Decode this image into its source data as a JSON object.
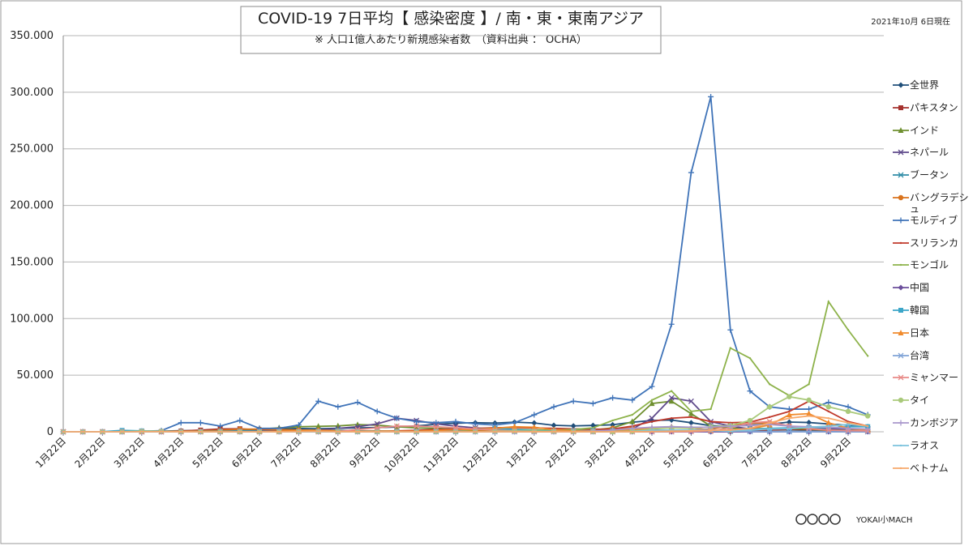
{
  "chart_data": {
    "type": "line",
    "title": "COVID-19  7日平均【 感染密度 】/ 南・東・東南アジア",
    "subtitle": "※ 人口1億人あたり新規感染者数　（資料出典 ： OCHA）",
    "date_note": "2021年10月 6日現在",
    "credit": "YOKAI小MACH",
    "categories": [
      "1月22日",
      null,
      "2月22日",
      null,
      "3月22日",
      null,
      "4月22日",
      null,
      "5月22日",
      null,
      "6月22日",
      null,
      "7月22日",
      null,
      "8月22日",
      null,
      "9月22日",
      null,
      "10月22日",
      null,
      "11月22日",
      null,
      "12月22日",
      null,
      "1月22日",
      null,
      "2月22日",
      null,
      "3月22日",
      null,
      "4月22日",
      null,
      "5月22日",
      null,
      "6月22日",
      null,
      "7月22日",
      null,
      "8月22日",
      null,
      "9月22日",
      null
    ],
    "ylim": [
      0,
      350000
    ],
    "yticks": [
      0,
      {
        "value": 50000,
        "label": "50.000"
      },
      {
        "value": 100000,
        "label": "100.000"
      },
      {
        "value": 150000,
        "label": "150.000"
      },
      {
        "value": 200000,
        "label": "200.000"
      },
      {
        "value": 250000,
        "label": "250.000"
      },
      {
        "value": 300000,
        "label": "300.000"
      },
      {
        "value": 350000,
        "label": "350.000"
      }
    ],
    "grid": true,
    "legend": "right",
    "series": [
      {
        "name": "全世界",
        "color": "#1f4e79",
        "marker": "diamond",
        "values": [
          0,
          0,
          0,
          0,
          100,
          600,
          1000,
          1100,
          1300,
          1800,
          2200,
          2600,
          2900,
          2700,
          3100,
          3500,
          3700,
          4200,
          5200,
          6600,
          7600,
          8000,
          7700,
          8500,
          7800,
          5700,
          5200,
          5600,
          6200,
          8400,
          10000,
          10400,
          8000,
          5400,
          4800,
          6000,
          6700,
          8600,
          8200,
          6900,
          5800,
          4500
        ]
      },
      {
        "name": "パキスタン",
        "color": "#a5322e",
        "marker": "square",
        "values": [
          0,
          0,
          0,
          0,
          100,
          300,
          700,
          1500,
          2500,
          2700,
          1600,
          800,
          500,
          300,
          250,
          250,
          300,
          400,
          800,
          1200,
          1500,
          1300,
          1000,
          900,
          700,
          600,
          700,
          1500,
          2200,
          2500,
          1600,
          1000,
          700,
          500,
          600,
          800,
          1500,
          2000,
          1500,
          1000,
          700,
          500
        ]
      },
      {
        "name": "インド",
        "color": "#6e8f2f",
        "marker": "triangle",
        "values": [
          0,
          0,
          0,
          0,
          0,
          50,
          200,
          400,
          900,
          1500,
          2300,
          3500,
          4500,
          4800,
          5200,
          6300,
          5800,
          4500,
          3400,
          3000,
          2500,
          1800,
          1300,
          1100,
          900,
          800,
          900,
          1500,
          3500,
          9000,
          25000,
          27000,
          16000,
          5000,
          3200,
          2900,
          2800,
          2800,
          2600,
          2400,
          2100,
          1600
        ]
      },
      {
        "name": "ネパール",
        "color": "#5f4a8b",
        "marker": "x",
        "values": [
          0,
          0,
          0,
          0,
          0,
          0,
          0,
          50,
          300,
          1000,
          800,
          400,
          500,
          1500,
          3000,
          4500,
          7000,
          12000,
          10000,
          7000,
          5000,
          3500,
          2000,
          1000,
          500,
          300,
          200,
          200,
          300,
          2500,
          12000,
          30000,
          27000,
          9000,
          5000,
          2500,
          2500,
          3500,
          3500,
          2800,
          2500,
          2000
        ]
      },
      {
        "name": "ブータン",
        "color": "#2e8ca6",
        "marker": "x",
        "values": [
          0,
          0,
          0,
          0,
          0,
          0,
          100,
          300,
          500,
          800,
          500,
          200,
          300,
          1000,
          1500,
          500,
          300,
          200,
          100,
          100,
          800,
          2000,
          2500,
          1500,
          500,
          300,
          200,
          100,
          100,
          200,
          1000,
          1500,
          1200,
          800,
          500,
          300,
          200,
          400,
          600,
          300,
          200,
          100
        ]
      },
      {
        "name": "バングラデシュ",
        "color": "#d9731d",
        "marker": "circle",
        "values": [
          0,
          0,
          0,
          0,
          0,
          50,
          300,
          700,
          1400,
          2300,
          2400,
          2000,
          1500,
          1300,
          1100,
          900,
          800,
          700,
          700,
          900,
          1200,
          1000,
          700,
          500,
          400,
          400,
          600,
          1500,
          3000,
          3300,
          1500,
          900,
          1200,
          2500,
          5500,
          7500,
          8000,
          5000,
          2500,
          1200,
          800,
          600
        ]
      },
      {
        "name": "モルディブ",
        "color": "#3f73b8",
        "marker": "plus",
        "values": [
          0,
          0,
          0,
          0,
          500,
          1000,
          8000,
          8000,
          5000,
          10000,
          3000,
          3000,
          6000,
          27000,
          22000,
          26000,
          18000,
          12000,
          9000,
          8000,
          9000,
          7000,
          6000,
          8000,
          15000,
          22000,
          27000,
          25000,
          30000,
          28000,
          40000,
          95000,
          229000,
          296000,
          90000,
          36000,
          22000,
          20000,
          20000,
          26000,
          22000,
          15000
        ]
      },
      {
        "name": "スリランカ",
        "color": "#c0392b",
        "marker": "none",
        "values": [
          0,
          0,
          0,
          0,
          0,
          50,
          50,
          100,
          100,
          50,
          0,
          50,
          100,
          50,
          50,
          50,
          100,
          800,
          1300,
          2000,
          2300,
          3000,
          3600,
          3800,
          3400,
          3000,
          2600,
          2300,
          2400,
          5000,
          9000,
          12000,
          13000,
          9000,
          8000,
          8500,
          13000,
          18000,
          27000,
          18000,
          9000,
          5000
        ]
      },
      {
        "name": "モンゴル",
        "color": "#8db24a",
        "marker": "none",
        "values": [
          0,
          0,
          0,
          0,
          100,
          200,
          300,
          300,
          200,
          100,
          50,
          50,
          50,
          50,
          50,
          50,
          50,
          100,
          200,
          300,
          800,
          2000,
          3000,
          2200,
          1700,
          1500,
          2000,
          3500,
          10000,
          15000,
          28000,
          36000,
          18000,
          20000,
          74000,
          65000,
          42000,
          32000,
          42000,
          115000,
          90000,
          67000
        ]
      },
      {
        "name": "中国",
        "color": "#6c4f9c",
        "marker": "diamond",
        "values": [
          0,
          5,
          20,
          10,
          5,
          5,
          3,
          1,
          1,
          1,
          1,
          2,
          3,
          2,
          1,
          1,
          1,
          1,
          1,
          1,
          1,
          2,
          2,
          3,
          3,
          2,
          1,
          1,
          1,
          1,
          1,
          1,
          1,
          2,
          2,
          3,
          5,
          8,
          5,
          3,
          2,
          2
        ]
      },
      {
        "name": "韓国",
        "color": "#3ca6c8",
        "marker": "square",
        "values": [
          0,
          10,
          100,
          1200,
          800,
          400,
          200,
          200,
          300,
          400,
          300,
          300,
          300,
          500,
          1000,
          800,
          500,
          400,
          400,
          600,
          1200,
          2500,
          3000,
          2000,
          1000,
          900,
          900,
          1000,
          1000,
          1200,
          1300,
          1200,
          1100,
          1000,
          1300,
          2200,
          3000,
          3500,
          3800,
          3500,
          4500,
          4500
        ]
      },
      {
        "name": "日本",
        "color": "#f08a2c",
        "marker": "triangle",
        "values": [
          0,
          0,
          0,
          50,
          100,
          300,
          400,
          150,
          50,
          40,
          100,
          400,
          1000,
          1100,
          700,
          400,
          350,
          400,
          500,
          1200,
          1700,
          2200,
          3000,
          4500,
          4000,
          1800,
          800,
          700,
          1000,
          2000,
          3300,
          4500,
          3500,
          1400,
          1200,
          2500,
          6000,
          15000,
          16000,
          8000,
          3000,
          1500
        ]
      },
      {
        "name": "台湾",
        "color": "#7fa3d6",
        "marker": "x",
        "values": [
          0,
          10,
          20,
          30,
          50,
          100,
          30,
          5,
          2,
          2,
          2,
          2,
          2,
          2,
          2,
          2,
          2,
          2,
          2,
          2,
          2,
          2,
          2,
          2,
          2,
          5,
          5,
          3,
          3,
          3,
          5,
          10,
          1500,
          2000,
          1000,
          300,
          100,
          50,
          30,
          20,
          20,
          20
        ]
      },
      {
        "name": "ミャンマー",
        "color": "#e88a87",
        "marker": "x",
        "values": [
          0,
          0,
          0,
          0,
          0,
          10,
          20,
          20,
          20,
          20,
          20,
          20,
          20,
          50,
          200,
          2000,
          3500,
          5000,
          5000,
          4500,
          3500,
          2500,
          1500,
          800,
          500,
          300,
          100,
          50,
          50,
          100,
          100,
          100,
          200,
          800,
          3500,
          8000,
          9000,
          5000,
          3000,
          1500,
          1000,
          800
        ]
      },
      {
        "name": "タイ",
        "color": "#a9c97a",
        "marker": "circle",
        "values": [
          0,
          0,
          10,
          50,
          500,
          500,
          100,
          50,
          20,
          10,
          10,
          10,
          10,
          10,
          10,
          10,
          10,
          10,
          10,
          10,
          20,
          100,
          400,
          500,
          500,
          300,
          100,
          100,
          100,
          500,
          2500,
          3500,
          3000,
          4500,
          5500,
          10000,
          22000,
          31000,
          28000,
          22000,
          18000,
          14000
        ]
      },
      {
        "name": "カンボジア",
        "color": "#a997cc",
        "marker": "plus",
        "values": [
          0,
          0,
          0,
          0,
          50,
          50,
          10,
          10,
          10,
          10,
          10,
          10,
          10,
          10,
          10,
          10,
          10,
          10,
          10,
          10,
          10,
          10,
          20,
          20,
          20,
          20,
          100,
          500,
          1500,
          3000,
          4000,
          4500,
          4000,
          4000,
          5000,
          5500,
          6500,
          5000,
          4500,
          4000,
          3000,
          2500
        ]
      },
      {
        "name": "ラオス",
        "color": "#7cc3dd",
        "marker": "none",
        "values": [
          0,
          0,
          0,
          0,
          10,
          20,
          10,
          0,
          0,
          0,
          0,
          0,
          0,
          0,
          0,
          0,
          0,
          0,
          0,
          0,
          0,
          0,
          0,
          0,
          0,
          0,
          0,
          0,
          0,
          200,
          1200,
          1500,
          1300,
          1000,
          500,
          1500,
          2500,
          2800,
          4000,
          5000,
          6500,
          5000
        ]
      },
      {
        "name": "ベトナム",
        "color": "#f7a86a",
        "marker": "none",
        "values": [
          0,
          0,
          0,
          0,
          100,
          150,
          50,
          20,
          10,
          10,
          20,
          50,
          200,
          300,
          100,
          30,
          10,
          10,
          10,
          10,
          10,
          10,
          10,
          20,
          30,
          50,
          60,
          30,
          20,
          30,
          200,
          500,
          800,
          1300,
          1500,
          3000,
          8000,
          12000,
          14000,
          12000,
          8000,
          5000
        ]
      }
    ]
  }
}
